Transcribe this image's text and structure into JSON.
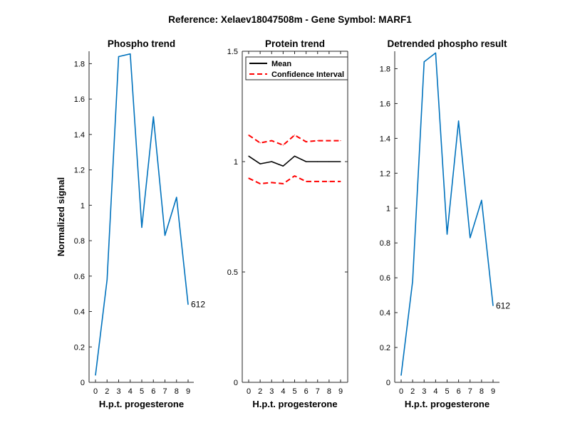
{
  "figure_title": "Reference:  Xelaev18047508m - Gene Symbol:  MARF1",
  "colors": {
    "blue": "#0072BD",
    "red": "#FF0000",
    "black": "#000000"
  },
  "chart_data": [
    {
      "type": "line",
      "title": "Phospho trend",
      "xlabel": "H.p.t. progesterone",
      "ylabel": "Normalized signal",
      "categories": [
        "0",
        "2",
        "3",
        "4",
        "5",
        "6",
        "7",
        "8",
        "9"
      ],
      "ylim": [
        0,
        1.87
      ],
      "yticks": [
        0,
        0.2,
        0.4,
        0.6,
        0.8,
        1,
        1.2,
        1.4,
        1.6,
        1.8
      ],
      "ytick_labels": [
        "0",
        "0.2",
        "0.4",
        "0.6",
        "0.8",
        "1",
        "1.2",
        "1.4",
        "1.6",
        "1.8"
      ],
      "series": [
        {
          "name": "phospho",
          "color": "#0072BD",
          "values": [
            0.04,
            0.58,
            1.84,
            1.855,
            0.875,
            1.5,
            0.83,
            1.045,
            0.44
          ]
        }
      ],
      "annotation": {
        "text": "612",
        "index": 8
      }
    },
    {
      "type": "line",
      "title": "Protein trend",
      "xlabel": "H.p.t. progesterone",
      "ylabel": "",
      "categories": [
        "0",
        "2",
        "3",
        "4",
        "5",
        "6",
        "7",
        "8",
        "9"
      ],
      "ylim": [
        0,
        1.5
      ],
      "yticks": [
        0,
        0.5,
        1,
        1.5
      ],
      "ytick_labels": [
        "0",
        "0.5",
        "1",
        "1.5"
      ],
      "box": true,
      "legend": {
        "position": "top-right",
        "entries": [
          {
            "label": "Mean",
            "color": "#000000",
            "dash": false
          },
          {
            "label": "Confidence Interval",
            "color": "#FF0000",
            "dash": true
          }
        ]
      },
      "series": [
        {
          "name": "Mean",
          "color": "#000000",
          "dash": false,
          "values": [
            1.025,
            0.99,
            1.0,
            0.98,
            1.025,
            1.0,
            1.0,
            1.0,
            1.0
          ]
        },
        {
          "name": "Confidence Interval (upper)",
          "color": "#FF0000",
          "dash": true,
          "values": [
            1.12,
            1.085,
            1.095,
            1.075,
            1.12,
            1.09,
            1.095,
            1.095,
            1.095
          ]
        },
        {
          "name": "Confidence Interval (lower)",
          "color": "#FF0000",
          "dash": true,
          "values": [
            0.925,
            0.9,
            0.905,
            0.9,
            0.935,
            0.91,
            0.91,
            0.91,
            0.91
          ]
        }
      ]
    },
    {
      "type": "line",
      "title": "Detrended phospho result",
      "xlabel": "H.p.t. progesterone",
      "ylabel": "",
      "categories": [
        "0",
        "2",
        "3",
        "4",
        "5",
        "6",
        "7",
        "8",
        "9"
      ],
      "ylim": [
        0,
        1.9
      ],
      "yticks": [
        0,
        0.2,
        0.4,
        0.6,
        0.8,
        1,
        1.2,
        1.4,
        1.6,
        1.8
      ],
      "ytick_labels": [
        "0",
        "0.2",
        "0.4",
        "0.6",
        "0.8",
        "1",
        "1.2",
        "1.4",
        "1.6",
        "1.8"
      ],
      "series": [
        {
          "name": "detrended",
          "color": "#0072BD",
          "values": [
            0.04,
            0.58,
            1.84,
            1.89,
            0.85,
            1.5,
            0.83,
            1.045,
            0.44
          ]
        }
      ],
      "annotation": {
        "text": "612",
        "index": 8
      }
    }
  ]
}
